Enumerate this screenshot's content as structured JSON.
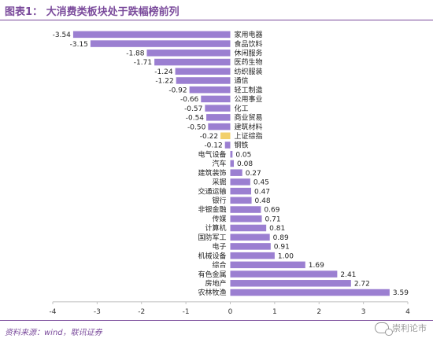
{
  "header": {
    "title": "图表1：  大消费类板块处于跌幅榜前列"
  },
  "footer": {
    "source": "资料来源：wind，联讯证券"
  },
  "watermark": {
    "text": "崇利论市",
    "icon": "wechat-icon"
  },
  "colors": {
    "bar": "#9b7fd1",
    "highlight": "#f2d06b",
    "accent": "#7a4a9b"
  },
  "chart_data": {
    "type": "bar",
    "orientation": "horizontal",
    "title": "",
    "xlabel": "",
    "ylabel": "",
    "xlim": [
      -4,
      4
    ],
    "xticks": [
      "-4",
      "-3",
      "-2",
      "-1",
      "0",
      "1",
      "2",
      "3",
      "4"
    ],
    "grid": false,
    "highlight_category": "上证综指",
    "categories": [
      "家用电器",
      "食品饮料",
      "休闲服务",
      "医药生物",
      "纺织服装",
      "通信",
      "轻工制造",
      "公用事业",
      "化工",
      "商业贸易",
      "建筑材料",
      "上证综指",
      "钢铁",
      "电气设备",
      "汽车",
      "建筑装饰",
      "采掘",
      "交通运输",
      "银行",
      "非银金融",
      "传媒",
      "计算机",
      "国防军工",
      "电子",
      "机械设备",
      "综合",
      "有色金属",
      "房地产",
      "农林牧渔"
    ],
    "values": [
      -3.54,
      -3.15,
      -1.88,
      -1.71,
      -1.24,
      -1.22,
      -0.92,
      -0.66,
      -0.57,
      -0.54,
      -0.5,
      -0.22,
      -0.12,
      0.05,
      0.08,
      0.27,
      0.45,
      0.47,
      0.48,
      0.69,
      0.71,
      0.81,
      0.89,
      0.91,
      1.0,
      1.69,
      2.41,
      2.72,
      3.59
    ],
    "labels": [
      "-3.54",
      "-3.15",
      "-1.88",
      "-1.71",
      "-1.24",
      "-1.22",
      "-0.92",
      "-0.66",
      "-0.57",
      "-0.54",
      "-0.50",
      "-0.22",
      "-0.12",
      "0.05",
      "0.08",
      "0.27",
      "0.45",
      "0.47",
      "0.48",
      "0.69",
      "0.71",
      "0.81",
      "0.89",
      "0.91",
      "1.00",
      "1.69",
      "2.41",
      "2.72",
      "3.59"
    ]
  }
}
